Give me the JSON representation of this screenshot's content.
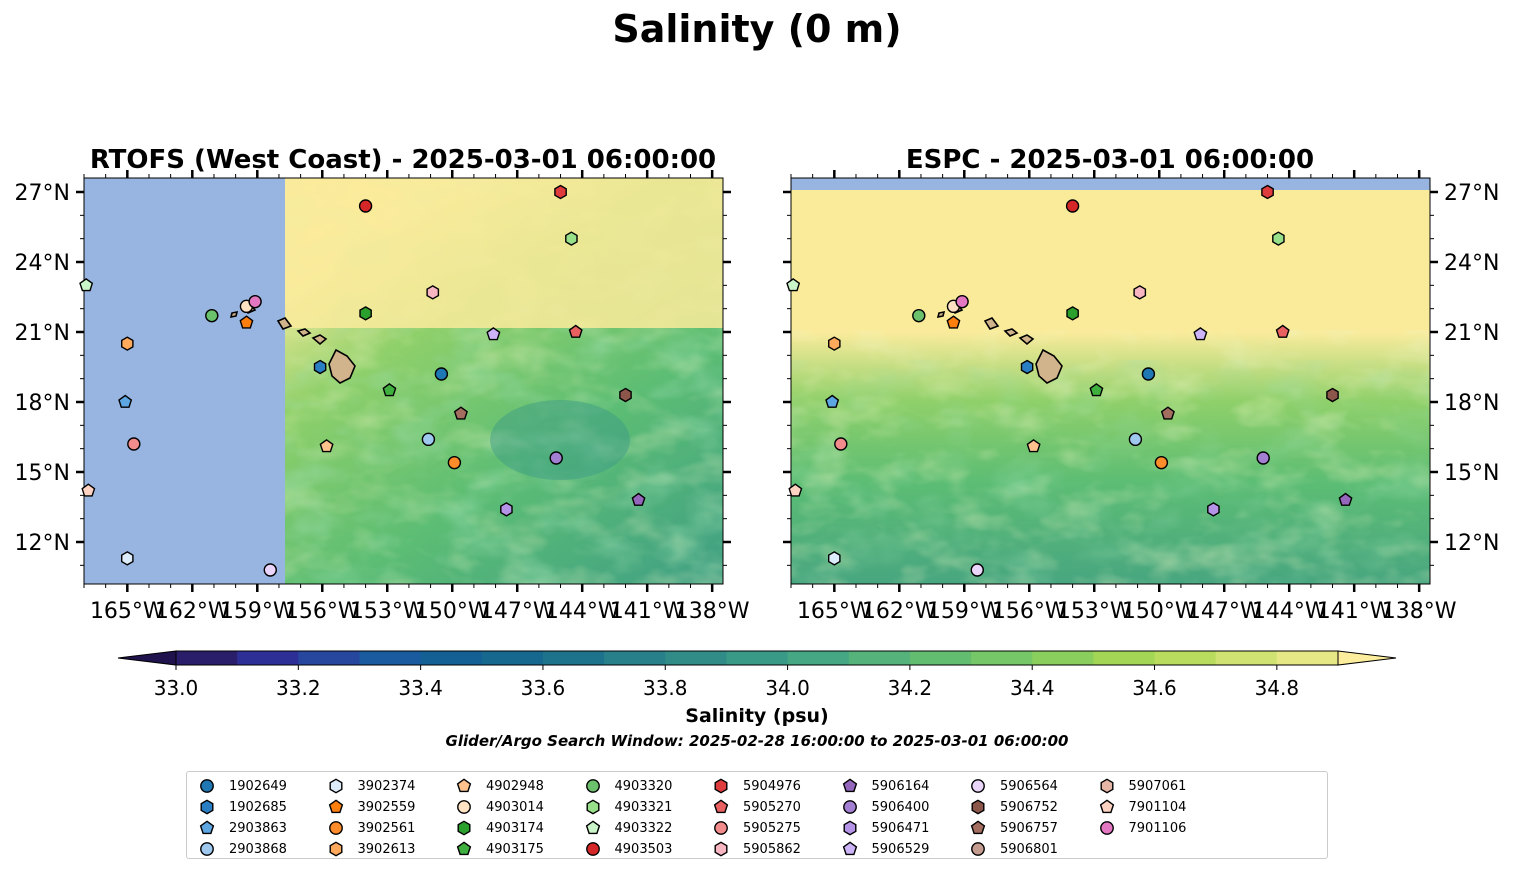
{
  "suptitle": "Salinity (0 m)",
  "colorbar": {
    "label": "Salinity (psu)",
    "ticks": [
      "33.0",
      "33.2",
      "33.4",
      "33.6",
      "33.8",
      "34.0",
      "34.2",
      "34.4",
      "34.6",
      "34.8"
    ],
    "levels_min": 33.0,
    "levels_max": 34.9,
    "levels_step": 0.1,
    "extend": "both",
    "colormap": "haline"
  },
  "subtitle": "Glider/Argo Search Window: 2025-02-28 16:00:00 to 2025-03-01 06:00:00",
  "colors": {
    "land": "#d2b48c",
    "nodata": "#98b4e0",
    "high_salinity": "#faeb9b",
    "mid_salinity": "#5cbd74",
    "low_salinity": "#3a9a88"
  },
  "chart_data": [
    {
      "type": "heatmap",
      "title": "RTOFS (West Coast) - 2025-03-01 06:00:00",
      "xlim": [
        -167,
        -137.5
      ],
      "ylim": [
        10.2,
        27.6
      ],
      "xticks": [
        "165°W",
        "162°W",
        "159°W",
        "156°W",
        "153°W",
        "150°W",
        "147°W",
        "144°W",
        "141°W",
        "138°W"
      ],
      "yticks": [
        "27°N",
        "24°N",
        "21°N",
        "18°N",
        "15°N",
        "12°N"
      ],
      "ytick_side": "left",
      "no_data_west_of_lon": -157.7,
      "field_note": "Salinity near 34.9 north of ~20°N and west of the model edge, 34.0–34.4 to the southeast, with lowest values near 33.9 around 16°N 145°W"
    },
    {
      "type": "heatmap",
      "title": "ESPC - 2025-03-01 06:00:00",
      "xlim": [
        -167,
        -137.5
      ],
      "ylim": [
        10.2,
        27.6
      ],
      "xticks": [
        "165°W",
        "162°W",
        "159°W",
        "156°W",
        "153°W",
        "150°W",
        "147°W",
        "144°W",
        "141°W",
        "138°W"
      ],
      "yticks": [
        "27°N",
        "24°N",
        "21°N",
        "18°N",
        "15°N",
        "12°N"
      ],
      "ytick_side": "right",
      "no_data_north_of_lat": 27.1,
      "field_note": "Salinity near 34.9 north of ~19°N, decreasing southward to ~34.1 near 12°N"
    }
  ],
  "floats": [
    {
      "id": "1902649",
      "marker": "circle",
      "color": "#1f77b4",
      "lon": -150.5,
      "lat": 19.2
    },
    {
      "id": "1902685",
      "marker": "hexagon",
      "color": "#2a7ec4",
      "lon": -156.1,
      "lat": 19.5
    },
    {
      "id": "2903863",
      "marker": "pentagon",
      "color": "#5ea6e2",
      "lon": -165.1,
      "lat": 18.0
    },
    {
      "id": "2903868",
      "marker": "circle",
      "color": "#9fc8ef",
      "lon": -151.1,
      "lat": 16.4
    },
    {
      "id": "3902374",
      "marker": "hexagon",
      "color": "#dcecfb",
      "lon": -165.0,
      "lat": 11.3
    },
    {
      "id": "3902559",
      "marker": "pentagon",
      "color": "#ff7f0e",
      "lon": -159.5,
      "lat": 21.4
    },
    {
      "id": "3902561",
      "marker": "circle",
      "color": "#ff8c2a",
      "lon": -149.9,
      "lat": 15.4
    },
    {
      "id": "3902613",
      "marker": "hexagon",
      "color": "#ffa95c",
      "lon": -165.0,
      "lat": 20.5
    },
    {
      "id": "4902948",
      "marker": "pentagon",
      "color": "#ffc28c",
      "lon": -155.8,
      "lat": 16.1
    },
    {
      "id": "4903014",
      "marker": "circle",
      "color": "#ffe2c4",
      "lon": -159.5,
      "lat": 22.1
    },
    {
      "id": "4903174",
      "marker": "hexagon",
      "color": "#2ca02c",
      "lon": -154.0,
      "lat": 21.8
    },
    {
      "id": "4903175",
      "marker": "pentagon",
      "color": "#3fb03f",
      "lon": -152.9,
      "lat": 18.5
    },
    {
      "id": "4903320",
      "marker": "circle",
      "color": "#6cc16c",
      "lon": -161.1,
      "lat": 21.7
    },
    {
      "id": "4903321",
      "marker": "hexagon",
      "color": "#98df8a",
      "lon": -144.5,
      "lat": 25.0
    },
    {
      "id": "4903322",
      "marker": "pentagon",
      "color": "#c9f5c9",
      "lon": -166.9,
      "lat": 23.0
    },
    {
      "id": "4903503",
      "marker": "circle",
      "color": "#d62728",
      "lon": -154.0,
      "lat": 26.4
    },
    {
      "id": "5904976",
      "marker": "hexagon",
      "color": "#df3d3d",
      "lon": -145.0,
      "lat": 27.0
    },
    {
      "id": "5905270",
      "marker": "pentagon",
      "color": "#e86060",
      "lon": -144.3,
      "lat": 21.0
    },
    {
      "id": "5905275",
      "marker": "circle",
      "color": "#f28c8c",
      "lon": -164.7,
      "lat": 16.2
    },
    {
      "id": "5905862",
      "marker": "hexagon",
      "color": "#f7b6c2",
      "lon": -150.9,
      "lat": 22.7
    },
    {
      "id": "5906164",
      "marker": "pentagon",
      "color": "#9467bd",
      "lon": -141.4,
      "lat": 13.8
    },
    {
      "id": "5906400",
      "marker": "circle",
      "color": "#a37fd1",
      "lon": -145.2,
      "lat": 15.6
    },
    {
      "id": "5906471",
      "marker": "hexagon",
      "color": "#b593e6",
      "lon": -147.5,
      "lat": 13.4
    },
    {
      "id": "5906529",
      "marker": "pentagon",
      "color": "#cdb3f7",
      "lon": -148.1,
      "lat": 20.9
    },
    {
      "id": "5906564",
      "marker": "circle",
      "color": "#ead5fb",
      "lon": -158.4,
      "lat": 10.8
    },
    {
      "id": "5906752",
      "marker": "hexagon",
      "color": "#8c564b",
      "lon": -142.0,
      "lat": 18.3
    },
    {
      "id": "5906757",
      "marker": "pentagon",
      "color": "#a36d5f",
      "lon": -149.6,
      "lat": 17.5
    },
    {
      "id": "5906801",
      "marker": "circle",
      "color": "#c49c8f",
      "lon": -165.0,
      "lat": 17.0,
      "visible": false
    },
    {
      "id": "5907061",
      "marker": "hexagon",
      "color": "#e5b5a5",
      "lon": -150.9,
      "lat": 22.7,
      "visible": false
    },
    {
      "id": "7901104",
      "marker": "pentagon",
      "color": "#ffd3c2",
      "lon": -166.8,
      "lat": 14.2
    },
    {
      "id": "7901106",
      "marker": "circle",
      "color": "#e377c2",
      "lon": -159.1,
      "lat": 22.3
    }
  ]
}
